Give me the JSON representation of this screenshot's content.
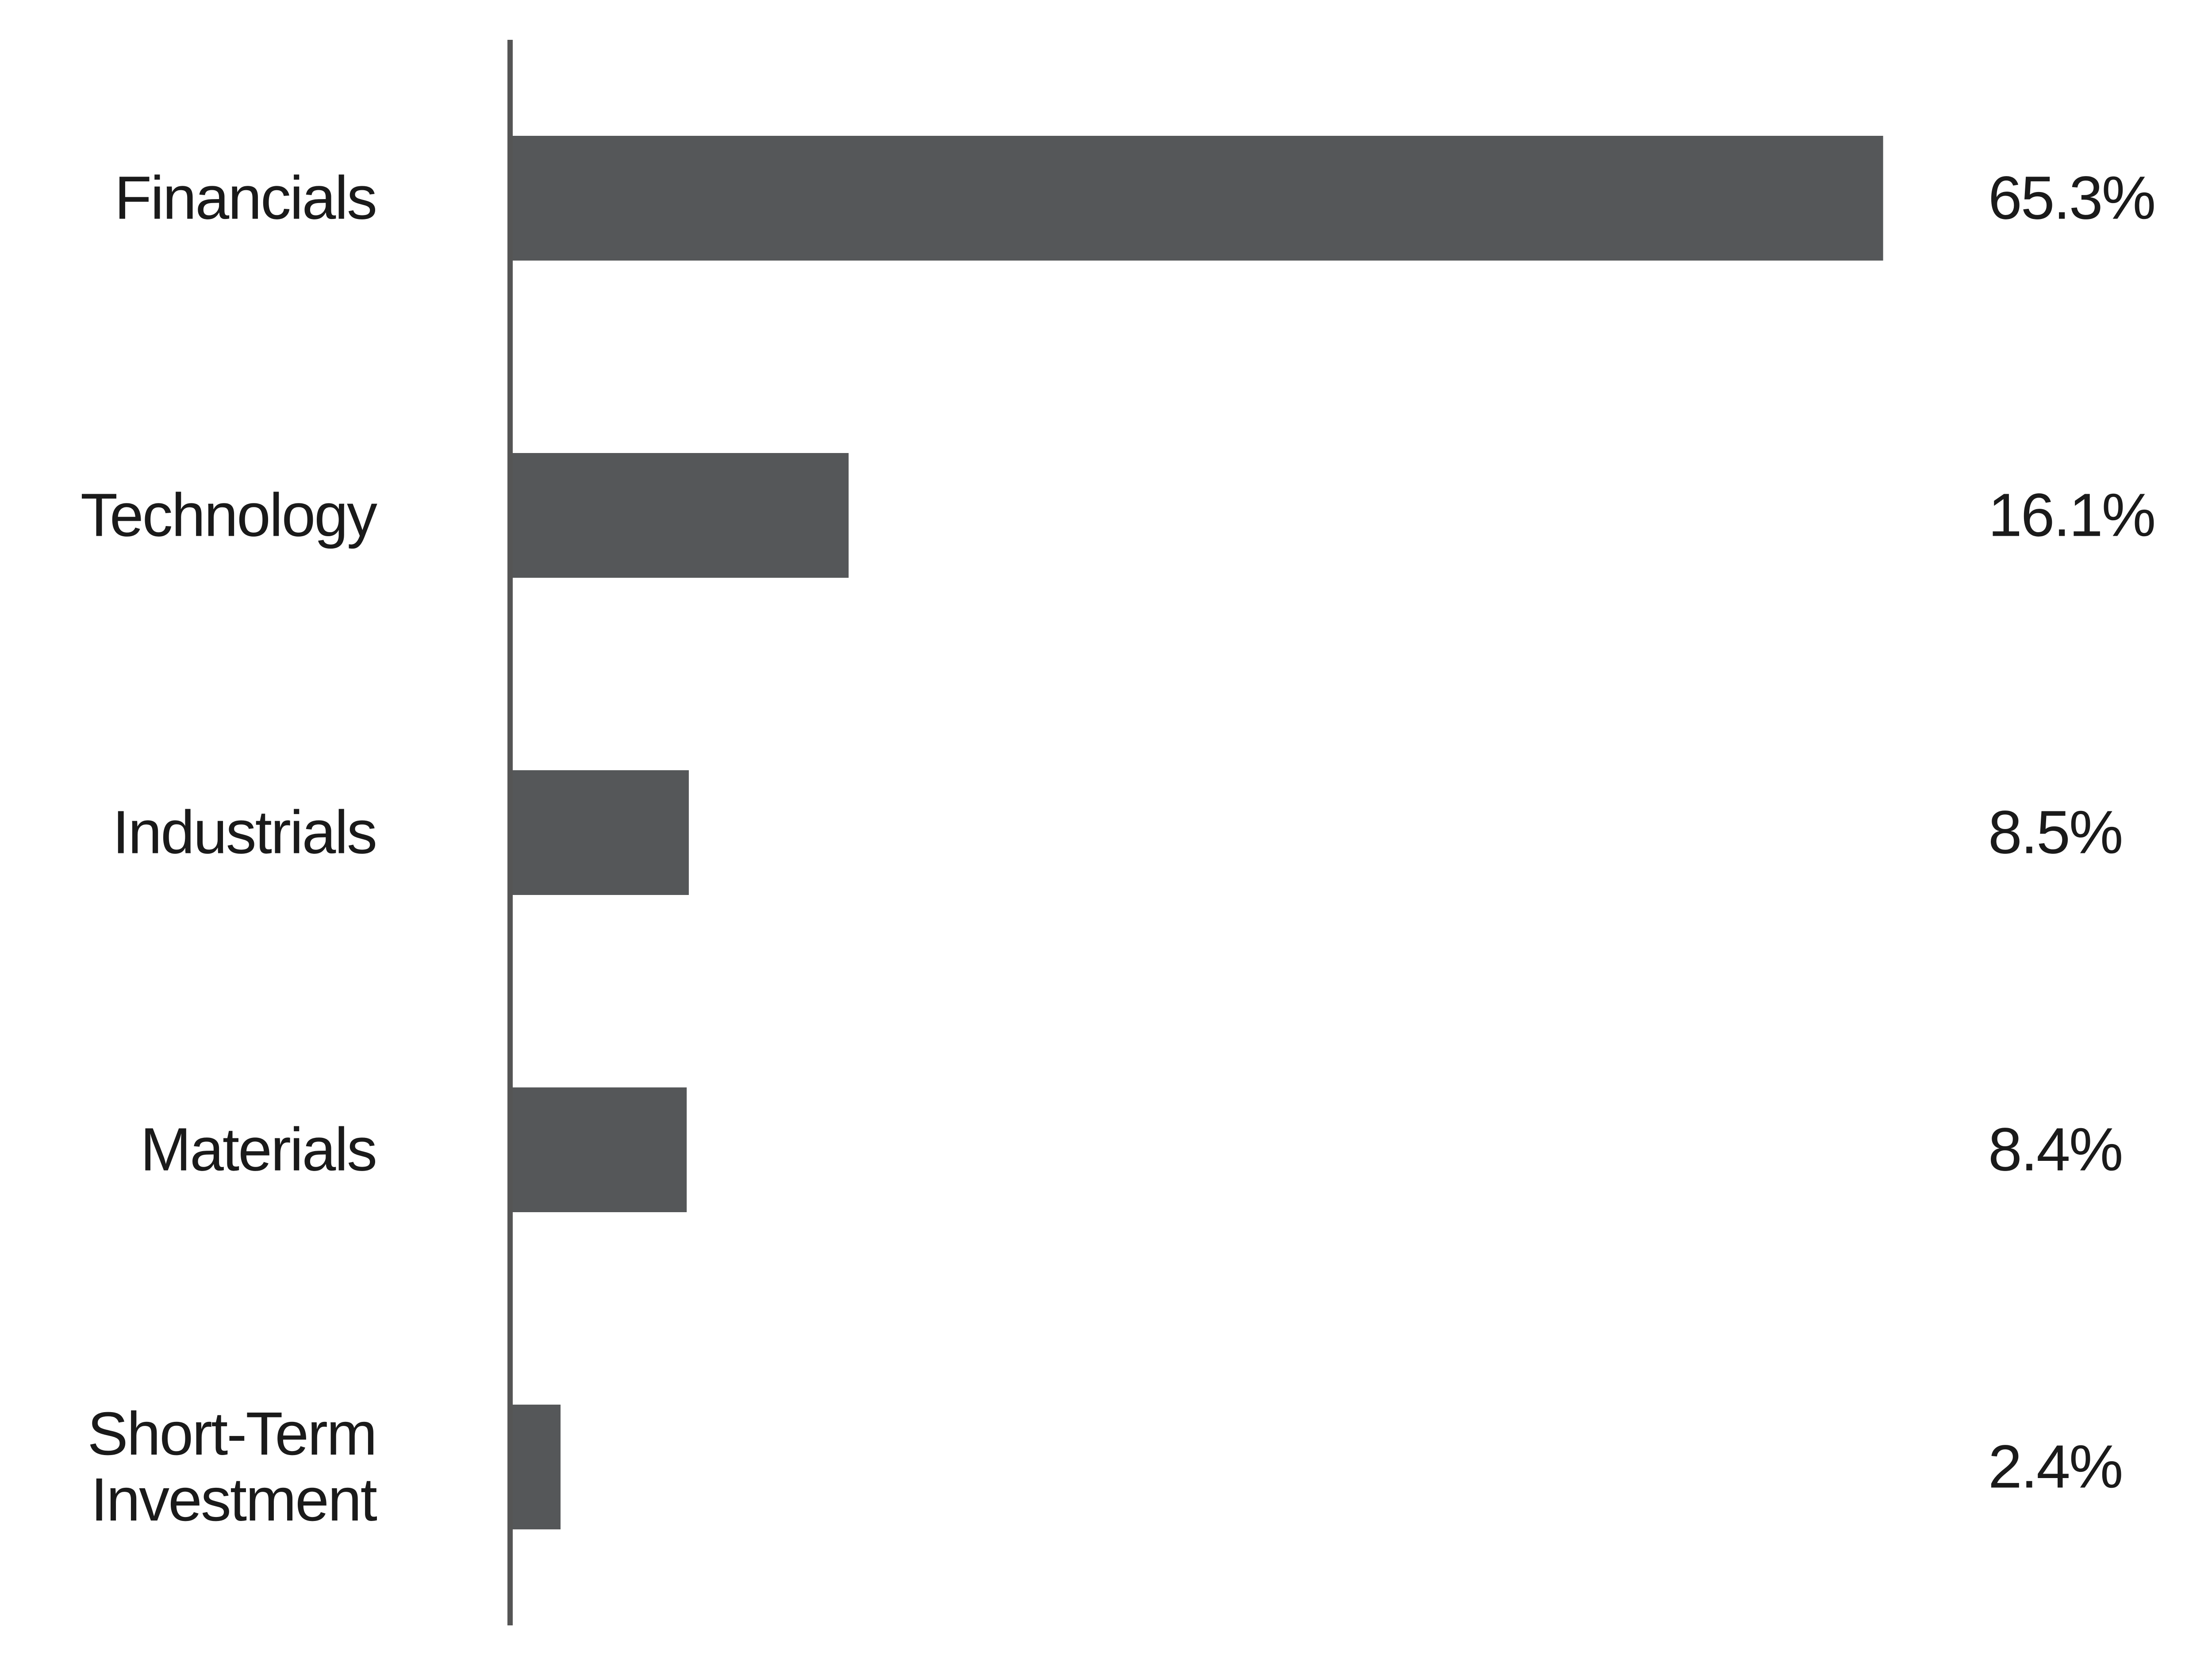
{
  "chart_data": {
    "type": "bar",
    "orientation": "horizontal",
    "categories": [
      "Financials",
      "Technology",
      "Industrials",
      "Materials",
      "Short-Term Investment"
    ],
    "values": [
      65.3,
      16.1,
      8.5,
      8.4,
      2.4
    ],
    "value_labels": [
      "65.3%",
      "16.1%",
      "8.5%",
      "8.4%",
      "2.4%"
    ],
    "color": "#555759",
    "xlim": [
      0,
      70
    ]
  }
}
